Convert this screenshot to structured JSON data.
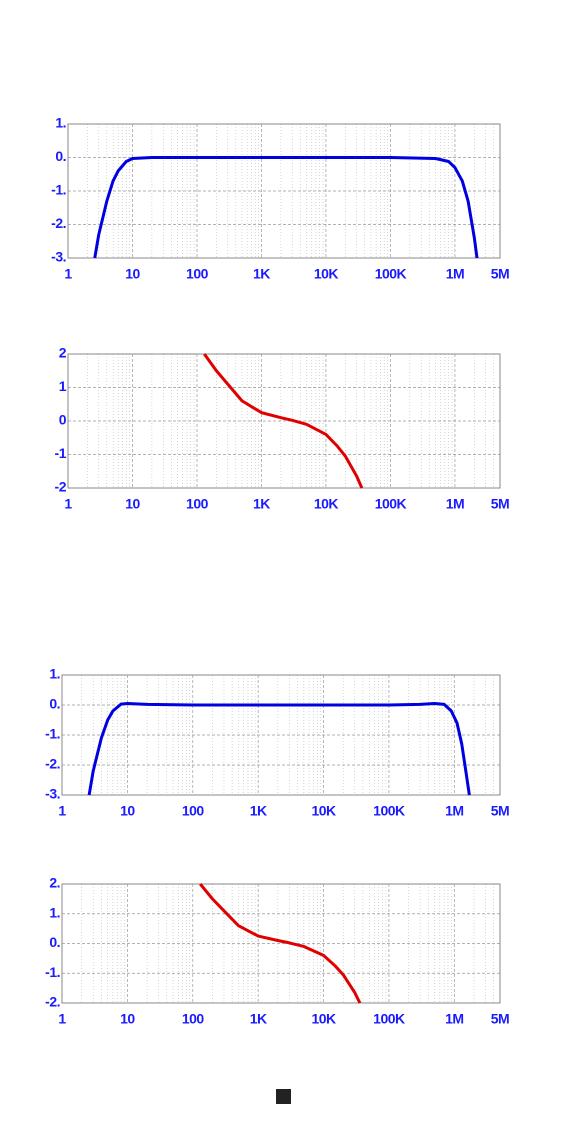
{
  "chart_data": [
    {
      "type": "line",
      "xlog": true,
      "grid": true,
      "xlim": [
        1,
        5000000
      ],
      "xticks": [
        1,
        10,
        100,
        {
          "value": 1000,
          "label": "1K"
        },
        {
          "value": 10000,
          "label": "10K"
        },
        {
          "value": 100000,
          "label": "100K"
        },
        {
          "value": 1000000,
          "label": "1M"
        },
        {
          "value": 5000000,
          "label": "5M"
        }
      ],
      "ylim": [
        -3,
        1
      ],
      "yticks": [
        {
          "value": 1,
          "label": "1."
        },
        {
          "value": 0,
          "label": "0."
        },
        {
          "value": -1,
          "label": "-1."
        },
        {
          "value": -2,
          "label": "-2."
        },
        {
          "value": -3,
          "label": "-3."
        }
      ],
      "series": [
        {
          "color": "#0000e0",
          "x": [
            2.6,
            3,
            4,
            5,
            6,
            8,
            10,
            20,
            100,
            1000,
            10000,
            100000,
            500000,
            800000,
            1000000,
            1300000,
            1600000,
            2000000,
            2200000
          ],
          "values": [
            -3,
            -2.3,
            -1.3,
            -0.7,
            -0.4,
            -0.12,
            -0.03,
            0,
            0,
            0,
            0,
            0,
            -0.03,
            -0.12,
            -0.3,
            -0.7,
            -1.3,
            -2.4,
            -3
          ]
        }
      ]
    },
    {
      "type": "line",
      "xlog": true,
      "grid": true,
      "xlim": [
        1,
        5000000
      ],
      "xticks": [
        1,
        10,
        100,
        {
          "value": 1000,
          "label": "1K"
        },
        {
          "value": 10000,
          "label": "10K"
        },
        {
          "value": 100000,
          "label": "100K"
        },
        {
          "value": 1000000,
          "label": "1M"
        },
        {
          "value": 5000000,
          "label": "5M"
        }
      ],
      "ylim": [
        -2,
        2
      ],
      "yticks": [
        2,
        1,
        0,
        -1,
        -2
      ],
      "series": [
        {
          "color": "#e00000",
          "x": [
            130,
            200,
            300,
            500,
            1000,
            2000,
            3000,
            5000,
            10000,
            15000,
            20000,
            30000,
            36000
          ],
          "values": [
            2,
            1.5,
            1.1,
            0.6,
            0.25,
            0.1,
            0.02,
            -0.1,
            -0.4,
            -0.75,
            -1.05,
            -1.65,
            -2
          ]
        }
      ]
    },
    {
      "type": "line",
      "xlog": true,
      "grid": true,
      "xlim": [
        1,
        5000000
      ],
      "xticks": [
        1,
        10,
        100,
        {
          "value": 1000,
          "label": "1K"
        },
        {
          "value": 10000,
          "label": "10K"
        },
        {
          "value": 100000,
          "label": "100K"
        },
        {
          "value": 1000000,
          "label": "1M"
        },
        {
          "value": 5000000,
          "label": "5M"
        }
      ],
      "ylim": [
        -3,
        1
      ],
      "yticks": [
        {
          "value": 1,
          "label": "1."
        },
        {
          "value": 0,
          "label": "0."
        },
        {
          "value": -1,
          "label": "-1."
        },
        {
          "value": -2,
          "label": "-2."
        },
        {
          "value": -3,
          "label": "-3."
        }
      ],
      "series": [
        {
          "color": "#0000e0",
          "x": [
            2.6,
            3,
            4,
            5,
            6,
            8,
            10,
            20,
            100,
            1000,
            10000,
            100000,
            300000,
            500000,
            700000,
            900000,
            1100000,
            1300000,
            1500000,
            1700000
          ],
          "values": [
            -3,
            -2.2,
            -1.1,
            -0.5,
            -0.2,
            0.03,
            0.05,
            0.02,
            0,
            0,
            0,
            0,
            0.02,
            0.05,
            0.02,
            -0.2,
            -0.6,
            -1.3,
            -2.2,
            -3
          ]
        }
      ]
    },
    {
      "type": "line",
      "xlog": true,
      "grid": true,
      "xlim": [
        1,
        5000000
      ],
      "xticks": [
        1,
        10,
        100,
        {
          "value": 1000,
          "label": "1K"
        },
        {
          "value": 10000,
          "label": "10K"
        },
        {
          "value": 100000,
          "label": "100K"
        },
        {
          "value": 1000000,
          "label": "1M"
        },
        {
          "value": 5000000,
          "label": "5M"
        }
      ],
      "ylim": [
        -2,
        2
      ],
      "yticks": [
        {
          "value": 2,
          "label": "2."
        },
        {
          "value": 1,
          "label": "1."
        },
        {
          "value": 0,
          "label": "0."
        },
        {
          "value": -1,
          "label": "-1."
        },
        {
          "value": -2,
          "label": "-2."
        }
      ],
      "series": [
        {
          "color": "#e00000",
          "x": [
            130,
            200,
            300,
            500,
            1000,
            2000,
            3000,
            5000,
            10000,
            15000,
            20000,
            30000,
            36000
          ],
          "values": [
            2,
            1.5,
            1.1,
            0.6,
            0.25,
            0.1,
            0.02,
            -0.1,
            -0.4,
            -0.75,
            -1.05,
            -1.65,
            -2
          ]
        }
      ]
    }
  ]
}
